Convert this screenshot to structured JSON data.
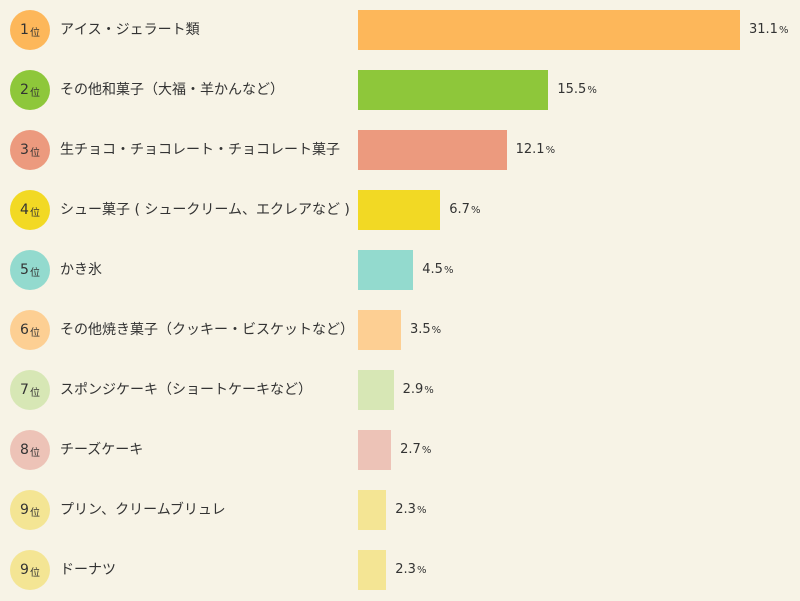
{
  "chart_data": {
    "type": "bar",
    "orientation": "horizontal",
    "rank_suffix": "位",
    "percent_symbol": "%",
    "xlim": [
      0,
      31.1
    ],
    "categories": [
      "アイス・ジェラート類",
      "その他和菓子（大福・羊かんなど）",
      "生チョコ・チョコレート・チョコレート菓子",
      "シュー菓子 ( シュークリーム、エクレアなど )",
      "かき氷",
      "その他焼き菓子（クッキー・ビスケットなど）",
      "スポンジケーキ（ショートケーキなど）",
      "チーズケーキ",
      "プリン、クリームブリュレ",
      "ドーナツ"
    ],
    "ranks": [
      1,
      2,
      3,
      4,
      5,
      6,
      7,
      8,
      9,
      9
    ],
    "values": [
      31.1,
      15.5,
      12.1,
      6.7,
      4.5,
      3.5,
      2.9,
      2.7,
      2.3,
      2.3
    ],
    "value_labels": [
      "31.1",
      "15.5",
      "12.1",
      "6.7",
      "4.5",
      "3.5",
      "2.9",
      "2.7",
      "2.3",
      "2.3"
    ],
    "colors": [
      "#fdb75a",
      "#8ec73a",
      "#ec9a7e",
      "#f2d924",
      "#93dace",
      "#fdcf93",
      "#d7e7b5",
      "#edc3b7",
      "#f4e594",
      "#f4e594"
    ]
  }
}
